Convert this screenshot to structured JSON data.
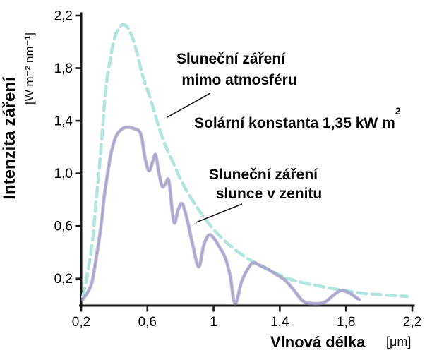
{
  "figure": {
    "y_axis": {
      "title": "Intenzita záření",
      "units": "[W m⁻² nm⁻¹]",
      "tick_labels": [
        "2,2",
        "1,8",
        "1,4",
        "1,0",
        "0,6",
        "0,2"
      ]
    },
    "x_axis": {
      "title": "Vlnová délka",
      "units": "[μm]",
      "tick_labels": [
        "0,2",
        "0,6",
        "1",
        "1,4",
        "1,8",
        "2,2"
      ]
    },
    "labels": {
      "extraterrestrial_line1": "Sluneční záření",
      "extraterrestrial_line2": "mimo atmosféru",
      "solar_constant": "Solární konstanta 1,35 kW m",
      "solar_constant_sup": "2",
      "zenith_line1": "Sluneční záření",
      "zenith_line2": "slunce v zenitu"
    },
    "colors": {
      "extraterrestrial_curve": "#ace5dd",
      "zenith_curve_edge": "#938dbb",
      "zenith_curve_core": "#aaa5cd",
      "axis": "#151515",
      "text": "#050505",
      "background": "#ffffff"
    }
  },
  "chart_data": {
    "type": "line",
    "title": "",
    "xlabel": "Vlnová délka [μm]",
    "ylabel": "Intenzita záření [W m⁻² nm⁻¹]",
    "xlim": [
      0.2,
      2.2
    ],
    "ylim": [
      0,
      2.2
    ],
    "x_ticks": [
      0.2,
      0.6,
      1.0,
      1.4,
      1.8,
      2.2
    ],
    "y_ticks": [
      2.2,
      1.8,
      1.4,
      1.0,
      0.6,
      0.2
    ],
    "grid": false,
    "legend_position": "inline-annotations",
    "annotations": [
      "Solární konstanta 1,35 kW m²"
    ],
    "series": [
      {
        "name": "Sluneční záření mimo atmosféru",
        "style": "dashed",
        "color": "#ace5dd",
        "x": [
          0.21,
          0.24,
          0.27,
          0.29,
          0.31,
          0.33,
          0.35,
          0.38,
          0.41,
          0.45,
          0.49,
          0.53,
          0.57,
          0.62,
          0.66,
          0.7,
          0.76,
          0.81,
          0.87,
          0.94,
          1.01,
          1.1,
          1.21,
          1.33,
          1.45,
          1.59,
          1.74,
          1.89,
          2.04,
          2.17
        ],
        "y": [
          0.06,
          0.25,
          0.5,
          0.79,
          1.05,
          1.35,
          1.65,
          1.9,
          2.06,
          2.13,
          2.09,
          1.95,
          1.75,
          1.56,
          1.39,
          1.24,
          1.07,
          0.93,
          0.8,
          0.67,
          0.56,
          0.45,
          0.35,
          0.27,
          0.2,
          0.155,
          0.12,
          0.09,
          0.075,
          0.065
        ]
      },
      {
        "name": "Sluneční záření slunce v zenitu",
        "style": "solid",
        "color": "#aaa5cd",
        "x": [
          0.21,
          0.26,
          0.29,
          0.32,
          0.34,
          0.36,
          0.38,
          0.41,
          0.44,
          0.47,
          0.52,
          0.56,
          0.585,
          0.61,
          0.635,
          0.65,
          0.67,
          0.69,
          0.71,
          0.73,
          0.76,
          0.785,
          0.81,
          0.84,
          0.875,
          0.91,
          0.94,
          0.97,
          1.0,
          1.04,
          1.07,
          1.1,
          1.13,
          1.17,
          1.21,
          1.24,
          1.28,
          1.33,
          1.38,
          1.43,
          1.48,
          1.54,
          1.6,
          1.67,
          1.72,
          1.77,
          1.82,
          1.88
        ],
        "y": [
          0.04,
          0.15,
          0.35,
          0.6,
          0.83,
          1.0,
          1.15,
          1.28,
          1.33,
          1.35,
          1.34,
          1.3,
          1.12,
          1.02,
          1.1,
          1.14,
          1.0,
          0.9,
          0.92,
          0.94,
          0.63,
          0.72,
          0.77,
          0.65,
          0.45,
          0.29,
          0.45,
          0.53,
          0.51,
          0.43,
          0.36,
          0.22,
          0.01,
          0.18,
          0.28,
          0.32,
          0.3,
          0.27,
          0.23,
          0.19,
          0.12,
          0.03,
          0.01,
          0.02,
          0.07,
          0.11,
          0.09,
          0.04
        ]
      }
    ]
  }
}
